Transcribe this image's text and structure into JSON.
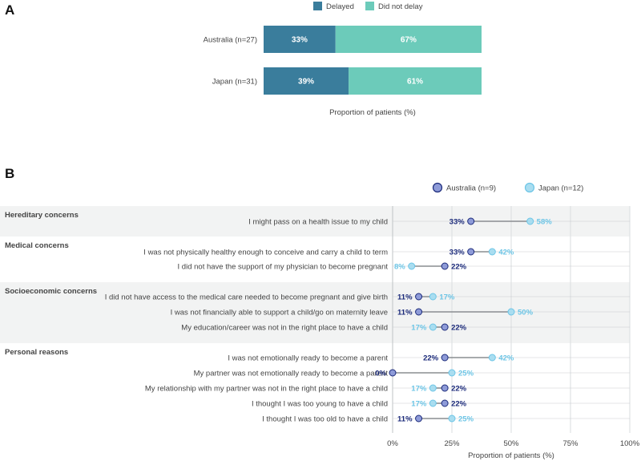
{
  "chart_data": [
    {
      "panel": "A",
      "type": "bar",
      "stacked": true,
      "orientation": "horizontal",
      "categories": [
        "Australia (n=27)",
        "Japan (n=31)"
      ],
      "series": [
        {
          "name": "Delayed",
          "values": [
            33,
            39
          ],
          "labels": [
            "33%",
            "39%"
          ],
          "color": "#3a7d9c"
        },
        {
          "name": "Did not delay",
          "values": [
            67,
            61
          ],
          "labels": [
            "67%",
            "61%"
          ],
          "color": "#6ccbba"
        }
      ],
      "xlabel": "Proportion of patients (%)",
      "xlim": [
        0,
        100
      ]
    },
    {
      "panel": "B",
      "type": "scatter",
      "subtype": "dumbbell",
      "legend": [
        {
          "name": "Australia (n=9)",
          "color": "#8e9bd8",
          "stroke": "#1b2a7a"
        },
        {
          "name": "Japan (n=12)",
          "color": "#a9ddf0",
          "stroke": "#6cc5e6"
        }
      ],
      "groups": [
        {
          "name": "Hereditary concerns",
          "shaded": true,
          "items": [
            {
              "label": "I might pass on a health issue to my child",
              "australia": 33,
              "japan": 58,
              "au_label": "33%",
              "jp_label": "58%"
            }
          ]
        },
        {
          "name": "Medical concerns",
          "shaded": false,
          "items": [
            {
              "label": "I was not physically healthy enough to conceive and carry a child to term",
              "australia": 33,
              "japan": 42,
              "au_label": "33%",
              "jp_label": "42%"
            },
            {
              "label": "I did not have the support of my physician to become pregnant",
              "australia": 22,
              "japan": 8,
              "au_label": "22%",
              "jp_label": "8%"
            }
          ]
        },
        {
          "name": "Socioeconomic concerns",
          "shaded": true,
          "items": [
            {
              "label": "I did not have access to the medical care needed to become pregnant and give birth",
              "australia": 11,
              "japan": 17,
              "au_label": "11%",
              "jp_label": "17%"
            },
            {
              "label": "I was not financially able to support a child/go on maternity leave",
              "australia": 11,
              "japan": 50,
              "au_label": "11%",
              "jp_label": "50%"
            },
            {
              "label": "My education/career was not in the right place to have a child",
              "australia": 22,
              "japan": 17,
              "au_label": "22%",
              "jp_label": "17%"
            }
          ]
        },
        {
          "name": "Personal reasons",
          "shaded": false,
          "items": [
            {
              "label": "I was not emotionally ready to become a parent",
              "australia": 22,
              "japan": 42,
              "au_label": "22%",
              "jp_label": "42%"
            },
            {
              "label": "My partner was not emotionally ready to become a parent",
              "australia": 0,
              "japan": 25,
              "au_label": "0%",
              "jp_label": "25%"
            },
            {
              "label": "My relationship with my partner was not in the right place to have a child",
              "australia": 22,
              "japan": 17,
              "au_label": "22%",
              "jp_label": "17%"
            },
            {
              "label": "I thought I was too young to have a child",
              "australia": 22,
              "japan": 17,
              "au_label": "22%",
              "jp_label": "17%"
            },
            {
              "label": "I thought I was too old to have a child",
              "australia": 11,
              "japan": 25,
              "au_label": "11%",
              "jp_label": "25%"
            }
          ]
        }
      ],
      "xticks": [
        0,
        25,
        50,
        75,
        100
      ],
      "xtick_labels": [
        "0%",
        "25%",
        "50%",
        "75%",
        "100%"
      ],
      "xlabel": "Proportion of patients (%)",
      "xlim": [
        0,
        100
      ]
    }
  ]
}
